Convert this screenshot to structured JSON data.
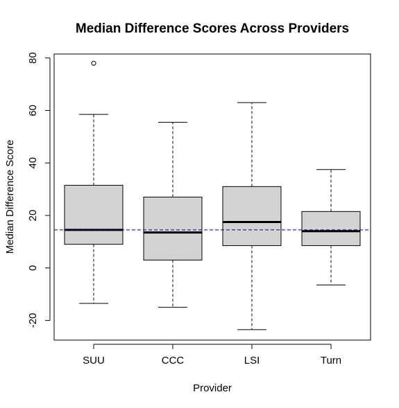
{
  "chart_data": {
    "type": "box",
    "title": "Median Difference Scores Across Providers",
    "xlabel": "Provider",
    "ylabel": "Median Difference Score",
    "ylim": [
      -27.5,
      81.5
    ],
    "yticks": [
      -20,
      0,
      20,
      40,
      60,
      80
    ],
    "categories": [
      "SUU",
      "CCC",
      "LSI",
      "Turn"
    ],
    "boxes": [
      {
        "category": "SUU",
        "whisker_low": -13.5,
        "q1": 9,
        "median": 14.5,
        "q3": 31.5,
        "whisker_high": 58.5,
        "outliers": [
          78
        ]
      },
      {
        "category": "CCC",
        "whisker_low": -15,
        "q1": 3,
        "median": 13.5,
        "q3": 27,
        "whisker_high": 55.5,
        "outliers": []
      },
      {
        "category": "LSI",
        "whisker_low": -23.5,
        "q1": 8.5,
        "median": 17.5,
        "q3": 31,
        "whisker_high": 63,
        "outliers": []
      },
      {
        "category": "Turn",
        "whisker_low": -6.5,
        "q1": 8.5,
        "median": 14,
        "q3": 21.5,
        "whisker_high": 37.5,
        "outliers": []
      }
    ],
    "reference_line": {
      "y": 14.5,
      "style": "dashed",
      "color": "#00008b"
    },
    "colors": {
      "box_fill": "#d3d3d3",
      "stroke": "#000000"
    },
    "grid": false,
    "legend": "none"
  }
}
